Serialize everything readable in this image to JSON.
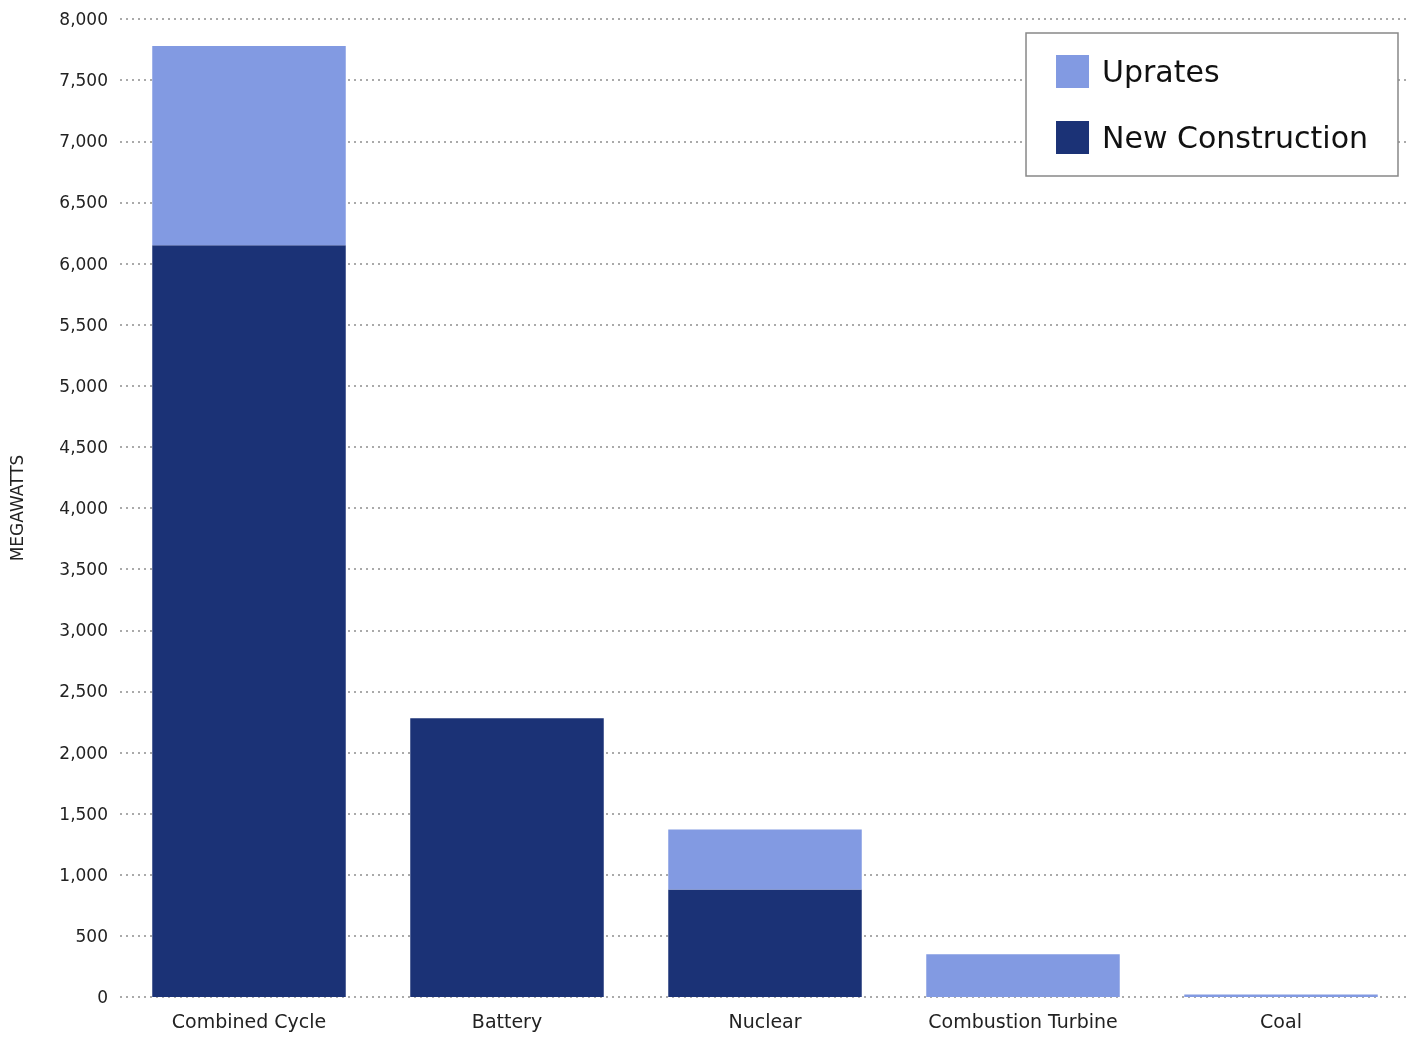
{
  "chart_data": {
    "type": "bar",
    "ylabel": "MEGAWATTS",
    "categories": [
      "Combined Cycle",
      "Battery",
      "Nuclear",
      "Combustion Turbine",
      "Coal"
    ],
    "series": [
      {
        "name": "New Construction",
        "color": "#1b3276",
        "values": [
          6150,
          2280,
          880,
          0,
          0
        ]
      },
      {
        "name": "Uprates",
        "color": "#829ae2",
        "values": [
          1630,
          0,
          490,
          350,
          20
        ]
      }
    ],
    "stacked": true,
    "ylim": [
      0,
      8000
    ],
    "yticks": [
      0,
      500,
      {
        "value": 1000,
        "label": "1,000"
      },
      {
        "value": 1500,
        "label": "1,500"
      },
      {
        "value": 2000,
        "label": "2,000"
      },
      {
        "value": 2500,
        "label": "2,500"
      },
      {
        "value": 3000,
        "label": "3,000"
      },
      {
        "value": 3500,
        "label": "3,500"
      },
      {
        "value": 4000,
        "label": "4,000"
      },
      {
        "value": 4500,
        "label": "4,500"
      },
      {
        "value": 5000,
        "label": "5,000"
      },
      {
        "value": 5500,
        "label": "5,500"
      },
      {
        "value": 6000,
        "label": "6,000"
      },
      {
        "value": 6500,
        "label": "6,500"
      },
      {
        "value": 7000,
        "label": "7,000"
      },
      {
        "value": 7500,
        "label": "7,500"
      },
      {
        "value": 8000,
        "label": "8,000"
      }
    ],
    "grid": "y",
    "legend": "top right"
  }
}
